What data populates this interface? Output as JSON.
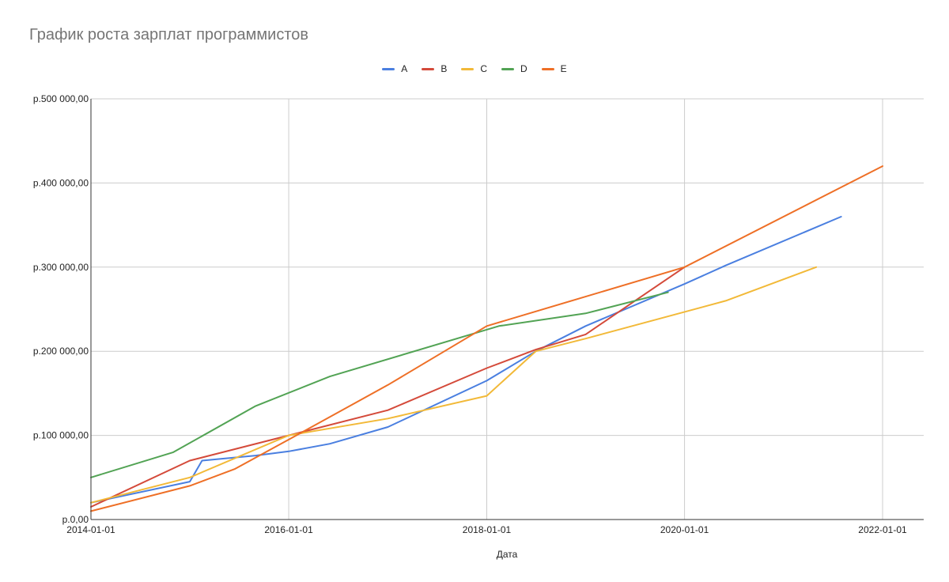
{
  "colors": {
    "A": "#4a7fe0",
    "B": "#d44a3a",
    "C": "#f2b938",
    "D": "#52a354",
    "E": "#ee6f26",
    "grid": "#cccccc",
    "axis": "#333333"
  },
  "chart_data": {
    "type": "line",
    "title": "График роста зарплат программистов",
    "xlabel": "Дата",
    "ylabel": "",
    "xlim": [
      "2014-01-01",
      "2022-05-01"
    ],
    "ylim": [
      0,
      500000
    ],
    "x_ticks": [
      "2014-01-01",
      "2016-01-01",
      "2018-01-01",
      "2020-01-01",
      "2022-01-01"
    ],
    "y_ticks": [
      {
        "value": 0,
        "label": "р.0,00"
      },
      {
        "value": 100000,
        "label": "р.100 000,00"
      },
      {
        "value": 200000,
        "label": "р.200 000,00"
      },
      {
        "value": 300000,
        "label": "р.300 000,00"
      },
      {
        "value": 400000,
        "label": "р.400 000,00"
      },
      {
        "value": 500000,
        "label": "р.500 000,00"
      }
    ],
    "grid": true,
    "legend": "top",
    "series": [
      {
        "name": "A",
        "color": "#4a7fe0",
        "points": [
          [
            "2014-01-01",
            20000
          ],
          [
            "2015-01-01",
            45000
          ],
          [
            "2015-02-15",
            70000
          ],
          [
            "2015-09-01",
            76000
          ],
          [
            "2016-01-01",
            81000
          ],
          [
            "2016-06-01",
            90000
          ],
          [
            "2017-01-01",
            110000
          ],
          [
            "2018-01-01",
            165000
          ],
          [
            "2018-07-01",
            200000
          ],
          [
            "2019-01-01",
            230000
          ],
          [
            "2020-01-01",
            280000
          ],
          [
            "2020-06-01",
            302000
          ],
          [
            "2021-08-01",
            360000
          ]
        ]
      },
      {
        "name": "B",
        "color": "#d44a3a",
        "points": [
          [
            "2014-01-01",
            15000
          ],
          [
            "2015-01-01",
            70000
          ],
          [
            "2016-01-01",
            100000
          ],
          [
            "2017-01-01",
            130000
          ],
          [
            "2018-01-01",
            180000
          ],
          [
            "2018-07-01",
            202000
          ],
          [
            "2019-01-01",
            220000
          ],
          [
            "2020-01-01",
            300000
          ]
        ]
      },
      {
        "name": "C",
        "color": "#f2b938",
        "points": [
          [
            "2014-01-01",
            20000
          ],
          [
            "2015-01-01",
            50000
          ],
          [
            "2016-01-01",
            100000
          ],
          [
            "2017-01-01",
            120000
          ],
          [
            "2018-01-01",
            147000
          ],
          [
            "2018-07-01",
            200000
          ],
          [
            "2019-01-01",
            215000
          ],
          [
            "2020-06-01",
            260000
          ],
          [
            "2021-05-01",
            300000
          ]
        ]
      },
      {
        "name": "D",
        "color": "#52a354",
        "points": [
          [
            "2014-01-01",
            50000
          ],
          [
            "2014-11-01",
            80000
          ],
          [
            "2015-09-01",
            135000
          ],
          [
            "2016-06-01",
            170000
          ],
          [
            "2018-02-15",
            230000
          ],
          [
            "2019-01-01",
            245000
          ],
          [
            "2019-11-01",
            270000
          ]
        ]
      },
      {
        "name": "E",
        "color": "#ee6f26",
        "points": [
          [
            "2014-01-01",
            10000
          ],
          [
            "2015-01-01",
            40000
          ],
          [
            "2015-06-15",
            60000
          ],
          [
            "2016-01-01",
            95000
          ],
          [
            "2017-01-01",
            160000
          ],
          [
            "2018-01-01",
            230000
          ],
          [
            "2020-01-01",
            300000
          ],
          [
            "2022-01-01",
            420000
          ]
        ]
      }
    ]
  }
}
